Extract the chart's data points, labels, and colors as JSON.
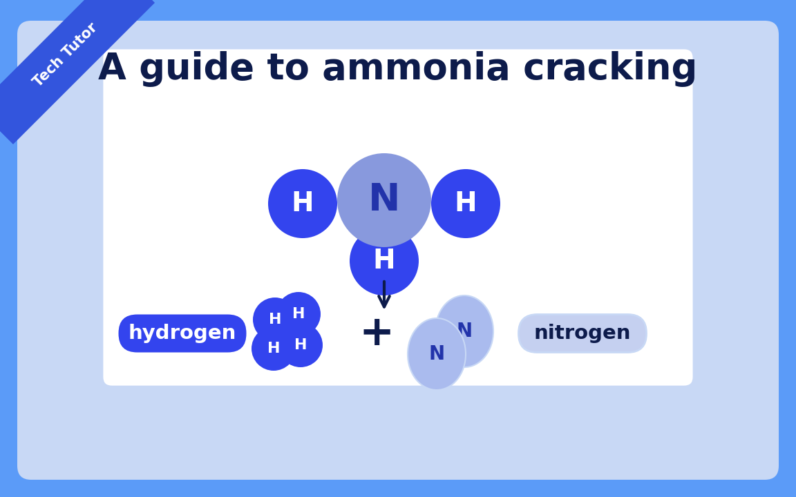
{
  "bg_outer": "#5b9bf8",
  "bg_border": "#c8d8f5",
  "bg_panel": "#ffffff",
  "title": "A guide to ammonia cracking",
  "title_color": "#0d1b4b",
  "title_fontsize": 38,
  "banner_color": "#3355dd",
  "banner_text": "Tech Tutor",
  "banner_text_color": "#ffffff",
  "H_color": "#3344ee",
  "N_color": "#8899dd",
  "N_light": "#aabbee",
  "H_label_color": "#ffffff",
  "N_label_color": "#2233aa",
  "label_box_H_color": "#3344ee",
  "label_box_N_color": "#c5d0f0",
  "label_text_H": "hydrogen",
  "label_text_N": "nitrogen",
  "label_H_text_color": "#ffffff",
  "label_N_text_color": "#0d1b4b",
  "arrow_color": "#0d1b4b",
  "plus_color": "#0d1b4b"
}
